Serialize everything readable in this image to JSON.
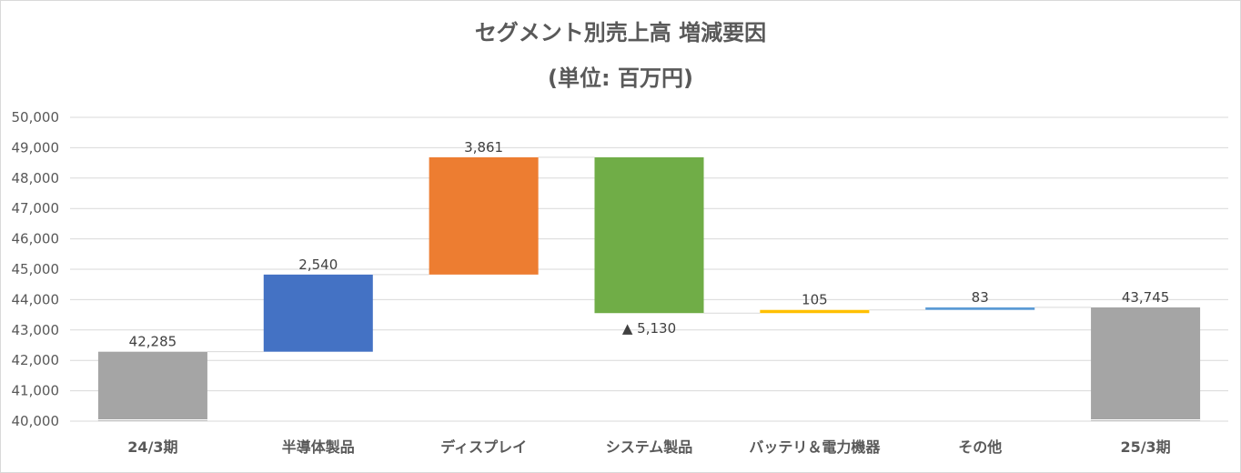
{
  "chart_data": {
    "type": "bar",
    "subtype": "waterfall",
    "title": "セグメント別売上高 増減要因",
    "subtitle": "(単位: 百万円)",
    "xlabel": "",
    "ylabel": "",
    "ylim": [
      40000,
      50000
    ],
    "yticks": [
      "40,000",
      "41,000",
      "42,000",
      "43,000",
      "44,000",
      "45,000",
      "46,000",
      "47,000",
      "48,000",
      "49,000",
      "50,000"
    ],
    "grid": true,
    "legend": "none",
    "categories": [
      "24/3期",
      "半導体製品",
      "ディスプレイ",
      "システム製品",
      "バッテリ＆電力機器",
      "その他",
      "25/3期"
    ],
    "bars": [
      {
        "kind": "total",
        "start": 40000,
        "end": 42285,
        "label": "42,285",
        "color": "#a5a5a5"
      },
      {
        "kind": "increase",
        "start": 42285,
        "end": 44825,
        "label": "2,540",
        "color": "#4472c4"
      },
      {
        "kind": "increase",
        "start": 44825,
        "end": 48686,
        "label": "3,861",
        "color": "#ed7d31"
      },
      {
        "kind": "decrease",
        "start": 48686,
        "end": 43556,
        "label": "▲ 5,130",
        "color": "#70ad47"
      },
      {
        "kind": "increase",
        "start": 43556,
        "end": 43661,
        "label": "105",
        "color": "#ffc000"
      },
      {
        "kind": "increase",
        "start": 43661,
        "end": 43745,
        "label": "83",
        "color": "#5b9bd5"
      },
      {
        "kind": "total",
        "start": 40000,
        "end": 43745,
        "label": "43,745",
        "color": "#a5a5a5"
      }
    ]
  }
}
